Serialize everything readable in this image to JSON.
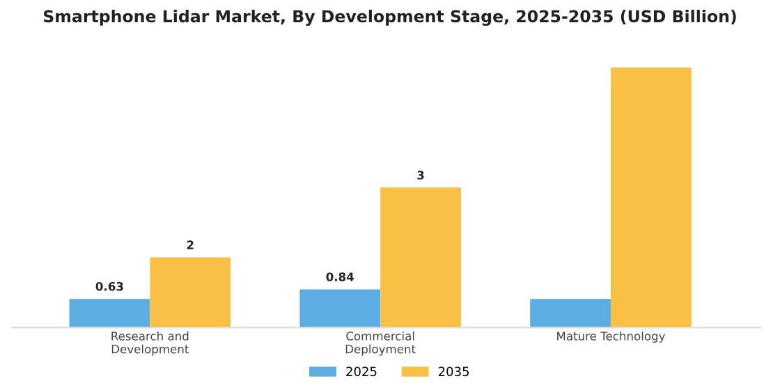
{
  "chart_data": {
    "type": "bar",
    "title": "Smartphone Lidar Market, By Development Stage, 2025-2035 (USD Billion)",
    "categories": [
      "Research and\nDevelopment",
      "Commercial\nDeployment",
      "Mature Technology"
    ],
    "series": [
      {
        "name": "2025",
        "color": "#5dade2",
        "values": [
          0.63,
          0.84,
          0.63
        ],
        "value_labels": [
          "0.63",
          "0.84",
          null
        ]
      },
      {
        "name": "2035",
        "color": "#f8c146",
        "values": [
          1.54,
          3.07,
          5.7
        ],
        "value_labels": [
          "2",
          "3",
          null
        ]
      }
    ],
    "tick_labels": "x",
    "grid": false,
    "legend": "bottom"
  }
}
